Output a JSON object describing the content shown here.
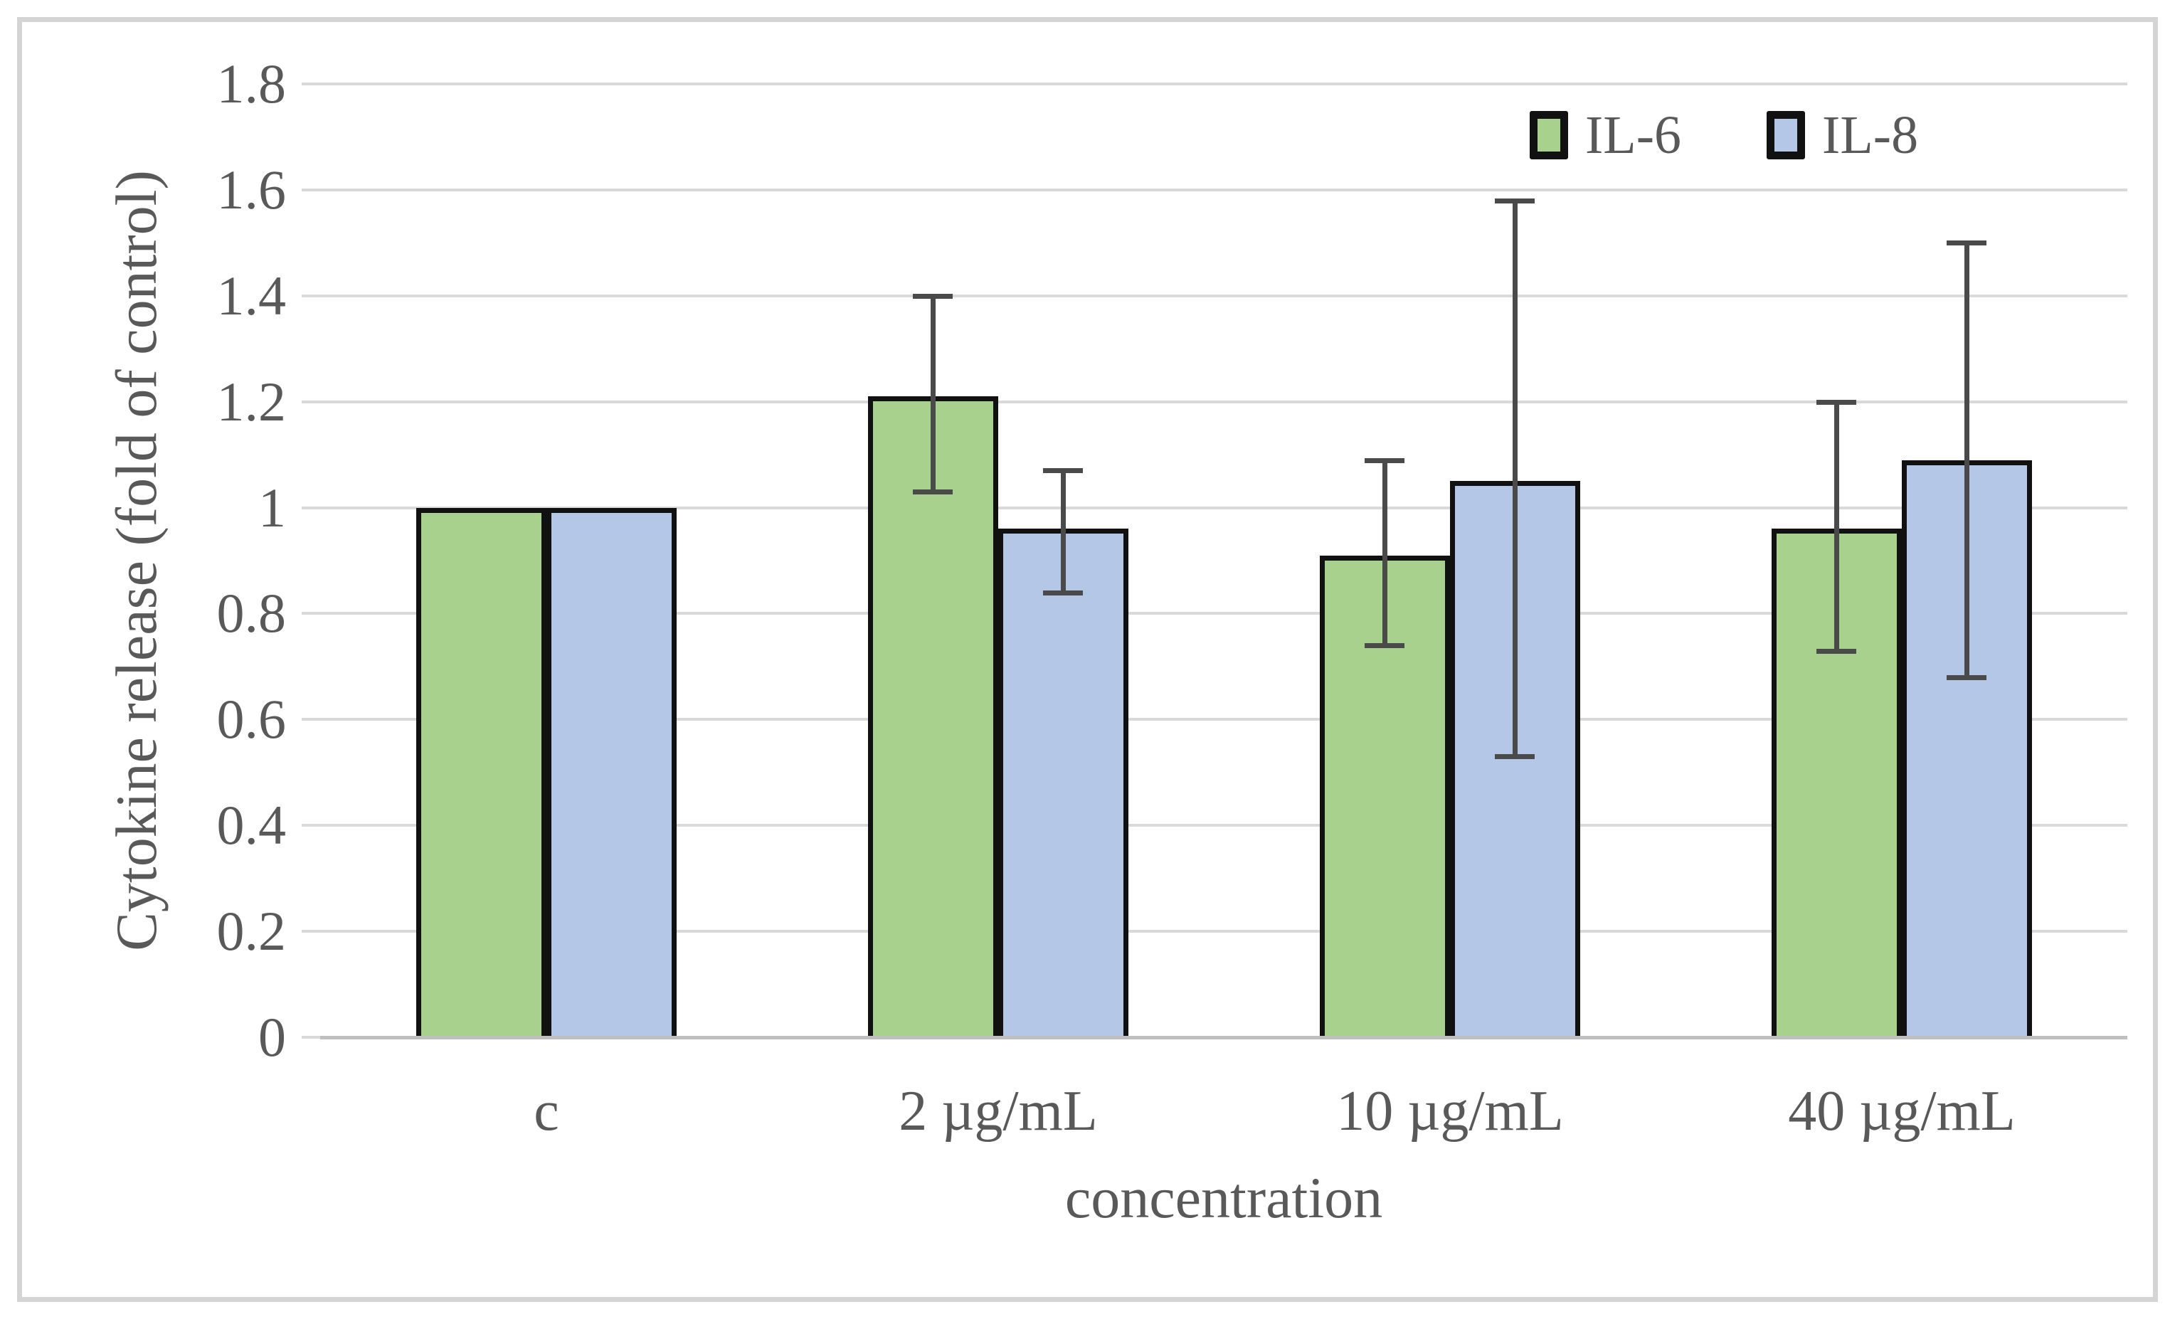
{
  "figure": {
    "description_texts": {
      "y_axis_title": "Cytokine release (fold of control)",
      "x_axis_title": "concentration"
    }
  },
  "palette": {
    "text": "#595959",
    "gridline": "#d9d9d9",
    "axis_line": "#bfbfbf",
    "error_bar": "#4a4a4a",
    "bar_border": "#111111",
    "figure_border": "#d4d4d4",
    "il6_fill": "#a9d18e",
    "il8_fill": "#b4c7e7"
  },
  "chart_data": {
    "type": "bar",
    "title": "",
    "xlabel": "concentration",
    "ylabel": "Cytokine release (fold of control)",
    "categories": [
      "c",
      "2 µg/mL",
      "10 µg/mL",
      "40 µg/mL"
    ],
    "series": [
      {
        "name": "IL-6",
        "color": "#a9d18e",
        "values": [
          1.0,
          1.21,
          0.91,
          0.96
        ],
        "error_low": [
          null,
          1.03,
          0.74,
          0.73
        ],
        "error_high": [
          null,
          1.4,
          1.09,
          1.2
        ]
      },
      {
        "name": "IL-8",
        "color": "#b4c7e7",
        "values": [
          1.0,
          0.96,
          1.05,
          1.09
        ],
        "error_low": [
          null,
          0.84,
          0.53,
          0.68
        ],
        "error_high": [
          null,
          1.07,
          1.58,
          1.5
        ]
      }
    ],
    "ylim": [
      0,
      1.8
    ],
    "ytick_step": 0.2,
    "ytick_labels": [
      "0",
      "0.2",
      "0.4",
      "0.6",
      "0.8",
      "1",
      "1.2",
      "1.4",
      "1.6",
      "1.8"
    ],
    "grid": true,
    "error_bars": true,
    "legend_position": "top-right"
  }
}
